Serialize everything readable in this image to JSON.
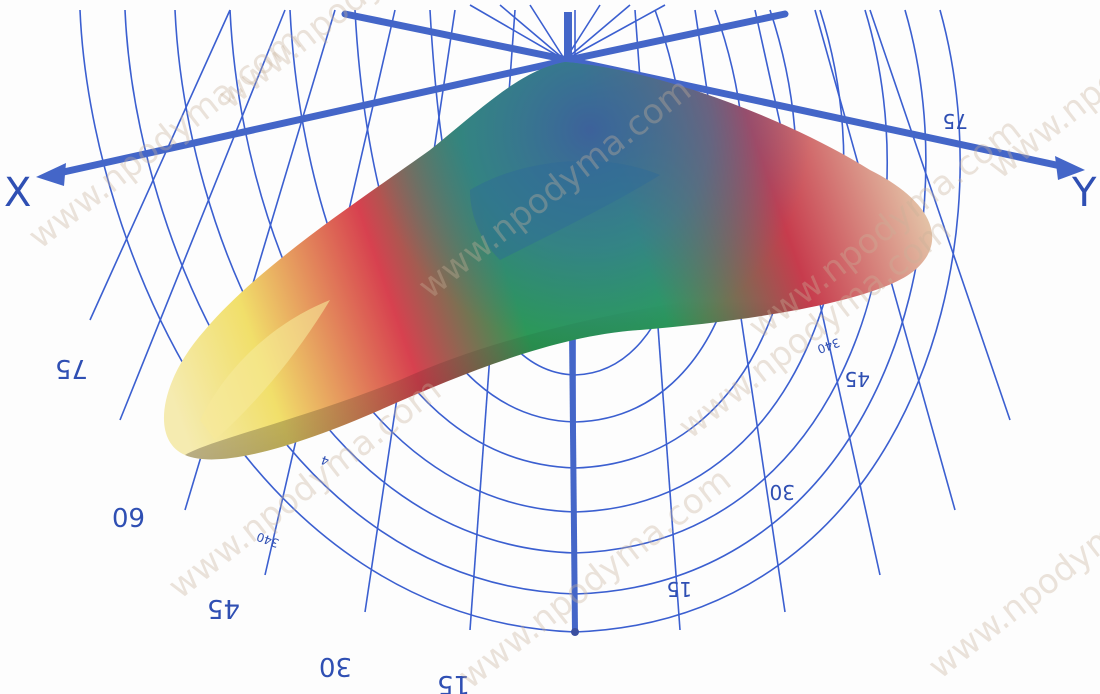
{
  "diagram": {
    "axis_x_label": "X",
    "axis_y_label": "Y",
    "left_scale": [
      "75",
      "60",
      "45",
      "30",
      "15"
    ],
    "right_scale": [
      "75",
      "45",
      "30",
      "15"
    ],
    "small_marks": [
      "340",
      "340",
      "4"
    ],
    "watermark": "www.npodyma.com",
    "colors": {
      "grid": "#3b5fd0",
      "axis": "#4466c8",
      "yellow": "#f1df6a",
      "red": "#d7414f",
      "green": "#2b9a55",
      "blue": "#3e5e9e"
    }
  }
}
